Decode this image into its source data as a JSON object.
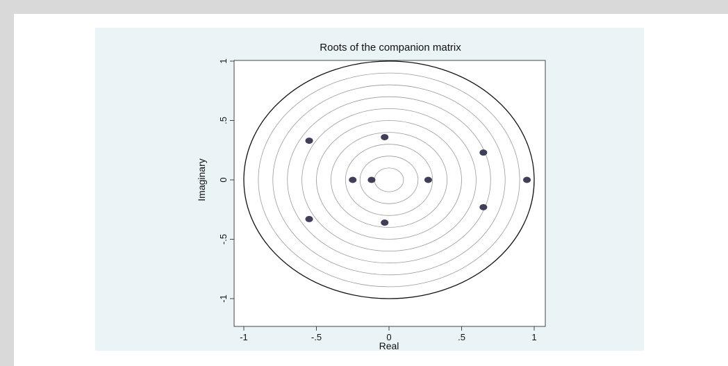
{
  "chart_data": {
    "type": "scatter",
    "title": "Roots of the companion matrix",
    "xlabel": "Real",
    "ylabel": "Imaginary",
    "xlim": [
      -1.05,
      1.05
    ],
    "ylim": [
      -1.05,
      1.05
    ],
    "x_ticks": [
      {
        "value": -1,
        "label": "-1"
      },
      {
        "value": -0.5,
        "label": "-.5"
      },
      {
        "value": 0,
        "label": "0"
      },
      {
        "value": 0.5,
        "label": ".5"
      },
      {
        "value": 1,
        "label": "1"
      }
    ],
    "y_ticks": [
      {
        "value": -1,
        "label": "-1"
      },
      {
        "value": -0.5,
        "label": "-.5"
      },
      {
        "value": 0,
        "label": "0"
      },
      {
        "value": 0.5,
        "label": ".5"
      },
      {
        "value": 1,
        "label": "1"
      }
    ],
    "unit_circle_radius": 1,
    "reference_circle_radii": [
      0.1,
      0.2,
      0.3,
      0.4,
      0.5,
      0.6,
      0.7,
      0.8,
      0.9
    ],
    "points": [
      {
        "x": -0.55,
        "y": 0.33
      },
      {
        "x": -0.55,
        "y": -0.33
      },
      {
        "x": -0.03,
        "y": 0.36
      },
      {
        "x": -0.03,
        "y": -0.36
      },
      {
        "x": -0.25,
        "y": 0
      },
      {
        "x": -0.12,
        "y": 0
      },
      {
        "x": 0.27,
        "y": 0
      },
      {
        "x": 0.65,
        "y": 0.23
      },
      {
        "x": 0.65,
        "y": -0.23
      },
      {
        "x": 0.95,
        "y": 0
      }
    ],
    "grid": false,
    "colors": {
      "point": "#3f3f5a",
      "unit_circle": "#111111",
      "reference_circles": "#9a9a9a",
      "plot_background": "#ffffff",
      "panel_background": "#eaf3f5"
    }
  }
}
